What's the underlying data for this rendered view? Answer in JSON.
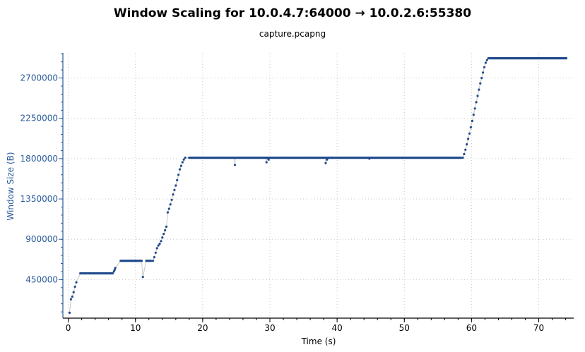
{
  "chart_data": {
    "type": "scatter",
    "title": "Window Scaling for 10.0.4.7:64000 → 10.0.2.6:55380",
    "subtitle": "capture.pcapng",
    "xlabel": "Time (s)",
    "ylabel": "Window Size (B)",
    "xlim": [
      -0.8,
      75.2
    ],
    "ylim": [
      20000,
      2980000
    ],
    "x_ticks": [
      0,
      10,
      20,
      30,
      40,
      50,
      60,
      70
    ],
    "y_ticks": [
      450000,
      900000,
      1350000,
      1800000,
      2250000,
      2700000
    ],
    "grid": true,
    "legend": "none",
    "colors": {
      "points": "#1f4a8c",
      "line": "#c8c8c8",
      "grid": "#c8c8c8",
      "y_axis": "#2a5a9a",
      "x_axis": "#000000"
    },
    "segments": [
      {
        "x": [
          0.2,
          0.4,
          0.6,
          0.8,
          1.0,
          1.2
        ],
        "y": [
          80000,
          230000,
          260000,
          310000,
          370000,
          420000
        ]
      },
      {
        "range": [
          1.8,
          6.6
        ],
        "step": 0.12,
        "y": 520000
      },
      {
        "x": [
          6.8,
          6.9,
          7.0
        ],
        "y": [
          540000,
          560000,
          580000
        ]
      },
      {
        "range": [
          7.8,
          11.0
        ],
        "step": 0.12,
        "y": 660000
      },
      {
        "x": [
          11.1
        ],
        "y": [
          480000
        ]
      },
      {
        "range": [
          11.6,
          12.4
        ],
        "step": 0.12,
        "y": 660000
      },
      {
        "x": [
          12.6,
          12.8,
          13.0,
          13.2,
          13.4,
          13.6,
          13.8,
          14.0,
          14.2,
          14.4,
          14.6,
          14.8,
          15.0,
          15.2,
          15.4,
          15.6,
          15.8,
          16.0,
          16.2,
          16.4,
          16.6,
          16.8,
          17.0,
          17.2,
          17.4
        ],
        "y": [
          660000,
          700000,
          750000,
          800000,
          830000,
          850000,
          880000,
          920000,
          960000,
          1000000,
          1040000,
          1200000,
          1240000,
          1290000,
          1340000,
          1400000,
          1450000,
          1500000,
          1560000,
          1620000,
          1680000,
          1720000,
          1760000,
          1790000,
          1810000
        ]
      },
      {
        "range": [
          18.0,
          58.5
        ],
        "step": 0.12,
        "y": 1810000
      },
      {
        "x": [
          24.8,
          29.5,
          29.8,
          38.3,
          38.5,
          44.8
        ],
        "y": [
          1730000,
          1760000,
          1790000,
          1750000,
          1790000,
          1800000
        ]
      },
      {
        "x": [
          58.7,
          58.9,
          59.1,
          59.3,
          59.5,
          59.7,
          59.9,
          60.1,
          60.3,
          60.5,
          60.7,
          60.9,
          61.1,
          61.3,
          61.5,
          61.7,
          61.9,
          62.1,
          62.3,
          62.5
        ],
        "y": [
          1810000,
          1850000,
          1900000,
          1960000,
          2020000,
          2080000,
          2150000,
          2220000,
          2290000,
          2360000,
          2430000,
          2500000,
          2570000,
          2640000,
          2700000,
          2760000,
          2820000,
          2870000,
          2900000,
          2920000
        ]
      },
      {
        "range": [
          62.7,
          74.2
        ],
        "step": 0.12,
        "y": 2920000
      }
    ]
  }
}
